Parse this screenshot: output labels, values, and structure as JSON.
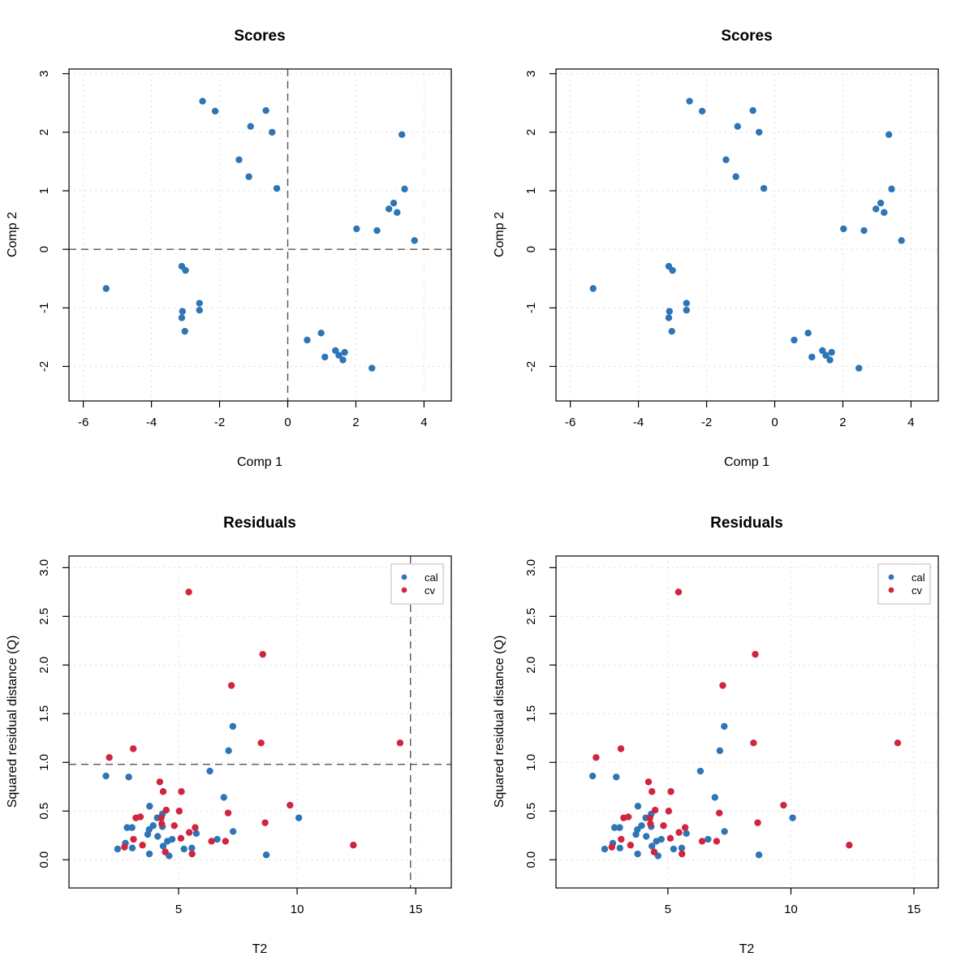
{
  "colors": {
    "cal": "#2e75b6",
    "cv": "#d0243f",
    "grid": "#d3d3d3",
    "axis": "#000000",
    "refline": "#555555"
  },
  "chart_data": [
    {
      "id": "scores-left",
      "type": "scatter",
      "title": "Scores",
      "xlabel": "Comp 1",
      "ylabel": "Comp 2",
      "xlim": [
        -6.42,
        4.8
      ],
      "ylim": [
        -2.59,
        3.08
      ],
      "xticks": [
        -6,
        -4,
        -2,
        0,
        2,
        4
      ],
      "yticks": [
        -2,
        -1,
        0,
        1,
        2,
        3
      ],
      "grid": true,
      "reference_lines": {
        "x": 0,
        "y": 0
      },
      "series": [
        {
          "name": "scores",
          "color_key": "cal",
          "points": [
            [
              -2.5,
              2.53
            ],
            [
              -2.13,
              2.36
            ],
            [
              -0.64,
              2.37
            ],
            [
              -1.09,
              2.1
            ],
            [
              -0.46,
              2.0
            ],
            [
              -1.43,
              1.53
            ],
            [
              -1.14,
              1.24
            ],
            [
              -0.32,
              1.04
            ],
            [
              3.35,
              1.96
            ],
            [
              3.43,
              1.03
            ],
            [
              3.11,
              0.79
            ],
            [
              2.97,
              0.69
            ],
            [
              3.21,
              0.63
            ],
            [
              2.02,
              0.35
            ],
            [
              2.62,
              0.32
            ],
            [
              3.72,
              0.15
            ],
            [
              -5.33,
              -0.67
            ],
            [
              -3.11,
              -0.29
            ],
            [
              -3.0,
              -0.36
            ],
            [
              -2.59,
              -0.92
            ],
            [
              -2.59,
              -1.04
            ],
            [
              -3.09,
              -1.06
            ],
            [
              -3.11,
              -1.17
            ],
            [
              -3.02,
              -1.4
            ],
            [
              0.98,
              -1.43
            ],
            [
              0.57,
              -1.55
            ],
            [
              1.4,
              -1.73
            ],
            [
              1.67,
              -1.76
            ],
            [
              1.5,
              -1.81
            ],
            [
              1.09,
              -1.84
            ],
            [
              1.62,
              -1.89
            ],
            [
              2.47,
              -2.03
            ]
          ]
        }
      ]
    },
    {
      "id": "scores-right",
      "type": "scatter",
      "title": "Scores",
      "xlabel": "Comp 1",
      "ylabel": "Comp 2",
      "xlim": [
        -6.42,
        4.8
      ],
      "ylim": [
        -2.59,
        3.08
      ],
      "xticks": [
        -6,
        -4,
        -2,
        0,
        2,
        4
      ],
      "yticks": [
        -2,
        -1,
        0,
        1,
        2,
        3
      ],
      "grid": true,
      "reference_lines": null,
      "series": [
        {
          "name": "scores",
          "color_key": "cal",
          "points": [
            [
              -2.5,
              2.53
            ],
            [
              -2.13,
              2.36
            ],
            [
              -0.64,
              2.37
            ],
            [
              -1.09,
              2.1
            ],
            [
              -0.46,
              2.0
            ],
            [
              -1.43,
              1.53
            ],
            [
              -1.14,
              1.24
            ],
            [
              -0.32,
              1.04
            ],
            [
              3.35,
              1.96
            ],
            [
              3.43,
              1.03
            ],
            [
              3.11,
              0.79
            ],
            [
              2.97,
              0.69
            ],
            [
              3.21,
              0.63
            ],
            [
              2.02,
              0.35
            ],
            [
              2.62,
              0.32
            ],
            [
              3.72,
              0.15
            ],
            [
              -5.33,
              -0.67
            ],
            [
              -3.11,
              -0.29
            ],
            [
              -3.0,
              -0.36
            ],
            [
              -2.59,
              -0.92
            ],
            [
              -2.59,
              -1.04
            ],
            [
              -3.09,
              -1.06
            ],
            [
              -3.11,
              -1.17
            ],
            [
              -3.02,
              -1.4
            ],
            [
              0.98,
              -1.43
            ],
            [
              0.57,
              -1.55
            ],
            [
              1.4,
              -1.73
            ],
            [
              1.67,
              -1.76
            ],
            [
              1.5,
              -1.81
            ],
            [
              1.09,
              -1.84
            ],
            [
              1.62,
              -1.89
            ],
            [
              2.47,
              -2.03
            ]
          ]
        }
      ]
    },
    {
      "id": "residuals-left",
      "type": "scatter",
      "title": "Residuals",
      "xlabel": "T2",
      "ylabel": "Squared residual distance (Q)",
      "xlim": [
        0.38,
        16.5
      ],
      "ylim": [
        -0.29,
        3.12
      ],
      "xticks": [
        5,
        10,
        15
      ],
      "yticks": [
        "0.0",
        "0.5",
        "1.0",
        "1.5",
        "2.0",
        "2.5",
        "3.0"
      ],
      "grid": true,
      "reference_lines": {
        "x": 14.78,
        "y": 0.98
      },
      "legend": {
        "position": "top-right",
        "entries": [
          "cal",
          "cv"
        ]
      },
      "series": [
        {
          "name": "cal",
          "color_key": "cal",
          "points": [
            [
              1.94,
              0.86
            ],
            [
              2.9,
              0.85
            ],
            [
              3.78,
              0.55
            ],
            [
              4.32,
              0.47
            ],
            [
              4.1,
              0.43
            ],
            [
              2.83,
              0.33
            ],
            [
              3.04,
              0.33
            ],
            [
              3.93,
              0.35
            ],
            [
              3.76,
              0.31
            ],
            [
              4.32,
              0.34
            ],
            [
              3.7,
              0.26
            ],
            [
              4.12,
              0.24
            ],
            [
              2.76,
              0.17
            ],
            [
              2.43,
              0.11
            ],
            [
              3.05,
              0.12
            ],
            [
              3.77,
              0.06
            ],
            [
              4.35,
              0.14
            ],
            [
              4.53,
              0.19
            ],
            [
              4.73,
              0.21
            ],
            [
              4.6,
              0.04
            ],
            [
              5.23,
              0.11
            ],
            [
              5.56,
              0.12
            ],
            [
              5.75,
              0.27
            ],
            [
              6.63,
              0.21
            ],
            [
              7.3,
              0.29
            ],
            [
              6.91,
              0.64
            ],
            [
              6.32,
              0.91
            ],
            [
              7.11,
              1.12
            ],
            [
              7.29,
              1.37
            ],
            [
              8.7,
              0.05
            ],
            [
              10.07,
              0.43
            ]
          ]
        },
        {
          "name": "cv",
          "color_key": "cv",
          "points": [
            [
              5.43,
              2.75
            ],
            [
              8.55,
              2.11
            ],
            [
              7.23,
              1.79
            ],
            [
              8.48,
              1.2
            ],
            [
              14.34,
              1.2
            ],
            [
              3.09,
              1.14
            ],
            [
              2.08,
              1.05
            ],
            [
              4.21,
              0.8
            ],
            [
              4.35,
              0.7
            ],
            [
              5.12,
              0.7
            ],
            [
              4.48,
              0.51
            ],
            [
              5.03,
              0.5
            ],
            [
              7.09,
              0.48
            ],
            [
              9.7,
              0.56
            ],
            [
              3.2,
              0.43
            ],
            [
              3.39,
              0.44
            ],
            [
              4.27,
              0.43
            ],
            [
              4.29,
              0.37
            ],
            [
              4.82,
              0.35
            ],
            [
              5.7,
              0.33
            ],
            [
              5.45,
              0.28
            ],
            [
              8.65,
              0.38
            ],
            [
              3.1,
              0.21
            ],
            [
              5.1,
              0.22
            ],
            [
              3.48,
              0.15
            ],
            [
              2.72,
              0.13
            ],
            [
              6.39,
              0.19
            ],
            [
              6.98,
              0.19
            ],
            [
              4.44,
              0.08
            ],
            [
              5.57,
              0.06
            ],
            [
              12.37,
              0.15
            ]
          ]
        }
      ]
    },
    {
      "id": "residuals-right",
      "type": "scatter",
      "title": "Residuals",
      "xlabel": "T2",
      "ylabel": "Squared residual distance (Q)",
      "xlim": [
        0.45,
        15.99
      ],
      "ylim": [
        -0.29,
        3.12
      ],
      "xticks": [
        5,
        10,
        15
      ],
      "yticks": [
        "0.0",
        "0.5",
        "1.0",
        "1.5",
        "2.0",
        "2.5",
        "3.0"
      ],
      "grid": true,
      "reference_lines": null,
      "legend": {
        "position": "top-right",
        "entries": [
          "cal",
          "cv"
        ]
      },
      "series": [
        {
          "name": "cal",
          "color_key": "cal",
          "points": [
            [
              1.94,
              0.86
            ],
            [
              2.9,
              0.85
            ],
            [
              3.78,
              0.55
            ],
            [
              4.32,
              0.47
            ],
            [
              4.1,
              0.43
            ],
            [
              2.83,
              0.33
            ],
            [
              3.04,
              0.33
            ],
            [
              3.93,
              0.35
            ],
            [
              3.76,
              0.31
            ],
            [
              4.32,
              0.34
            ],
            [
              3.7,
              0.26
            ],
            [
              4.12,
              0.24
            ],
            [
              2.76,
              0.17
            ],
            [
              2.43,
              0.11
            ],
            [
              3.05,
              0.12
            ],
            [
              3.77,
              0.06
            ],
            [
              4.35,
              0.14
            ],
            [
              4.53,
              0.19
            ],
            [
              4.73,
              0.21
            ],
            [
              4.6,
              0.04
            ],
            [
              5.23,
              0.11
            ],
            [
              5.56,
              0.12
            ],
            [
              5.75,
              0.27
            ],
            [
              6.63,
              0.21
            ],
            [
              7.3,
              0.29
            ],
            [
              6.91,
              0.64
            ],
            [
              6.32,
              0.91
            ],
            [
              7.11,
              1.12
            ],
            [
              7.29,
              1.37
            ],
            [
              8.7,
              0.05
            ],
            [
              10.07,
              0.43
            ]
          ]
        },
        {
          "name": "cv",
          "color_key": "cv",
          "points": [
            [
              5.43,
              2.75
            ],
            [
              8.55,
              2.11
            ],
            [
              7.23,
              1.79
            ],
            [
              8.48,
              1.2
            ],
            [
              14.34,
              1.2
            ],
            [
              3.09,
              1.14
            ],
            [
              2.08,
              1.05
            ],
            [
              4.21,
              0.8
            ],
            [
              4.35,
              0.7
            ],
            [
              5.12,
              0.7
            ],
            [
              4.48,
              0.51
            ],
            [
              5.03,
              0.5
            ],
            [
              7.09,
              0.48
            ],
            [
              9.7,
              0.56
            ],
            [
              3.2,
              0.43
            ],
            [
              3.39,
              0.44
            ],
            [
              4.27,
              0.43
            ],
            [
              4.29,
              0.37
            ],
            [
              4.82,
              0.35
            ],
            [
              5.7,
              0.33
            ],
            [
              5.45,
              0.28
            ],
            [
              8.65,
              0.38
            ],
            [
              3.1,
              0.21
            ],
            [
              5.1,
              0.22
            ],
            [
              3.48,
              0.15
            ],
            [
              2.72,
              0.13
            ],
            [
              6.39,
              0.19
            ],
            [
              6.98,
              0.19
            ],
            [
              4.44,
              0.08
            ],
            [
              5.57,
              0.06
            ],
            [
              12.37,
              0.15
            ]
          ]
        }
      ]
    }
  ]
}
